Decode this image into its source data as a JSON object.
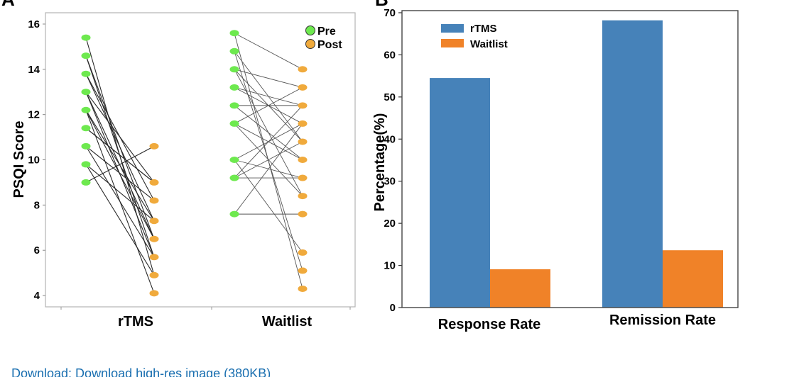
{
  "panel_a": {
    "letter": "A",
    "legend": [
      {
        "label": "Pre",
        "color": "#6ee94f"
      },
      {
        "label": "Post",
        "color": "#f0aa3c"
      }
    ],
    "ylabel": "PSQI Score",
    "yticks": [
      4,
      6,
      8,
      10,
      12,
      14,
      16
    ],
    "ylim": [
      3.5,
      16.5
    ],
    "categories": [
      "rTMS",
      "Waitlist"
    ]
  },
  "panel_b": {
    "letter": "B",
    "ylabel": "Percentage(%)",
    "yticks": [
      0,
      10,
      20,
      30,
      40,
      50,
      60,
      70
    ],
    "ylim": [
      0,
      70.5
    ],
    "categories": [
      "Response Rate",
      "Remission Rate"
    ]
  },
  "chart_data": [
    {
      "type": "scatter",
      "subtype": "paired-lines",
      "ylabel": "PSQI Score",
      "ylim": [
        3.5,
        16.5
      ],
      "groups": [
        {
          "name": "rTMS",
          "pairs": [
            [
              15.4,
              4.9
            ],
            [
              14.6,
              6.5
            ],
            [
              13.8,
              7.3
            ],
            [
              13.0,
              5.7
            ],
            [
              12.2,
              4.1
            ],
            [
              11.4,
              9.0
            ],
            [
              10.6,
              5.7
            ],
            [
              9.8,
              4.9
            ],
            [
              9.0,
              10.6
            ],
            [
              13.8,
              8.2
            ],
            [
              13.0,
              6.5
            ],
            [
              12.2,
              7.3
            ],
            [
              11.4,
              9.0
            ],
            [
              10.6,
              8.2
            ],
            [
              9.8,
              7.3
            ],
            [
              14.6,
              5.7
            ],
            [
              13.0,
              9.0
            ],
            [
              12.2,
              6.5
            ]
          ]
        },
        {
          "name": "Waitlist",
          "pairs": [
            [
              15.6,
              14.0
            ],
            [
              14.8,
              5.1
            ],
            [
              14.0,
              13.2
            ],
            [
              13.2,
              11.6
            ],
            [
              12.4,
              12.4
            ],
            [
              11.6,
              10.0
            ],
            [
              10.0,
              9.2
            ],
            [
              9.2,
              10.8
            ],
            [
              7.6,
              7.6
            ],
            [
              15.6,
              4.3
            ],
            [
              14.8,
              10.8
            ],
            [
              14.0,
              8.4
            ],
            [
              13.2,
              12.4
            ],
            [
              12.4,
              10.0
            ],
            [
              11.6,
              13.2
            ],
            [
              10.0,
              5.9
            ],
            [
              9.2,
              9.2
            ],
            [
              7.6,
              11.6
            ],
            [
              14.0,
              10.8
            ],
            [
              11.6,
              8.4
            ],
            [
              9.2,
              12.4
            ],
            [
              10.0,
              11.6
            ]
          ]
        }
      ],
      "legend": [
        "Pre",
        "Post"
      ],
      "legend_position": "top-right"
    },
    {
      "type": "bar",
      "categories": [
        "Response Rate",
        "Remission Rate"
      ],
      "series": [
        {
          "name": "rTMS",
          "color": "#4682b9",
          "values": [
            54.5,
            68.2
          ]
        },
        {
          "name": "Waitlist",
          "color": "#f08228",
          "values": [
            9.1,
            13.6
          ]
        }
      ],
      "ylabel": "Percentage(%)",
      "ylim": [
        0,
        70.5
      ],
      "legend_position": "top-left"
    }
  ],
  "footer": {
    "link_text": "Download: Download high-res image (380KB)"
  }
}
